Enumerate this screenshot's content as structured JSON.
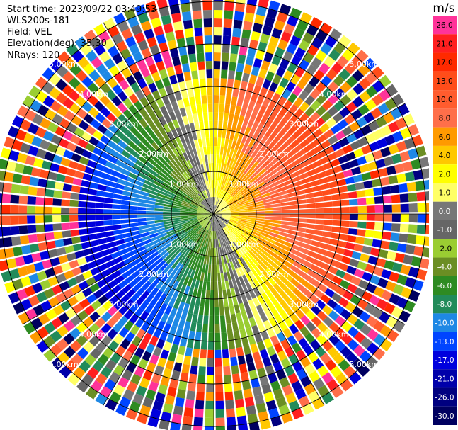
{
  "header": {
    "start_time": "Start time: 2023/09/22 03:49:53",
    "instrument": "WLS200s-181",
    "field": "Field: VEL",
    "elevation": "Elevation(deg): 35.30",
    "nrays": "NRays: 120"
  },
  "colorbar": {
    "unit": "m/s",
    "levels": [
      {
        "label": "26.0",
        "color": "#ff3399"
      },
      {
        "label": "21.0",
        "color": "#ff1f1f"
      },
      {
        "label": "17.0",
        "color": "#ff2a00"
      },
      {
        "label": "13.0",
        "color": "#ff4d1a"
      },
      {
        "label": "10.0",
        "color": "#ff5c2e"
      },
      {
        "label": "8.0",
        "color": "#ff6f4a"
      },
      {
        "label": "6.0",
        "color": "#ff9a00"
      },
      {
        "label": "4.0",
        "color": "#ffc800"
      },
      {
        "label": "2.0",
        "color": "#ffff00"
      },
      {
        "label": "1.0",
        "color": "#ffff66"
      },
      {
        "label": "0.0",
        "color": "#777777"
      },
      {
        "label": "-1.0",
        "color": "#666666"
      },
      {
        "label": "-2.0",
        "color": "#9acd32"
      },
      {
        "label": "-4.0",
        "color": "#6b8e23"
      },
      {
        "label": "-6.0",
        "color": "#2e8b22"
      },
      {
        "label": "-8.0",
        "color": "#228b5a"
      },
      {
        "label": "-10.0",
        "color": "#1e88e5"
      },
      {
        "label": "-13.0",
        "color": "#0044ff"
      },
      {
        "label": "-17.0",
        "color": "#0000dd"
      },
      {
        "label": "-21.0",
        "color": "#0000aa"
      },
      {
        "label": "-26.0",
        "color": "#000080"
      },
      {
        "label": "-30.0",
        "color": "#000060"
      }
    ]
  },
  "chart_data": {
    "type": "heatmap",
    "projection": "polar PPI",
    "field": "VEL",
    "nrays": 120,
    "range_rings_km": [
      1.0,
      2.0,
      3.0,
      4.0,
      5.0
    ],
    "range_ring_labels": [
      "1.00km",
      "2.00km",
      "3.00km",
      "4.00km",
      "5.00km"
    ],
    "max_range_km": 5.2,
    "signal_range_km": 3.3,
    "receding_direction": "east / south-east",
    "approaching_direction": "west / north-west",
    "value_range": [
      -30.0,
      26.0
    ],
    "unit": "m/s"
  }
}
